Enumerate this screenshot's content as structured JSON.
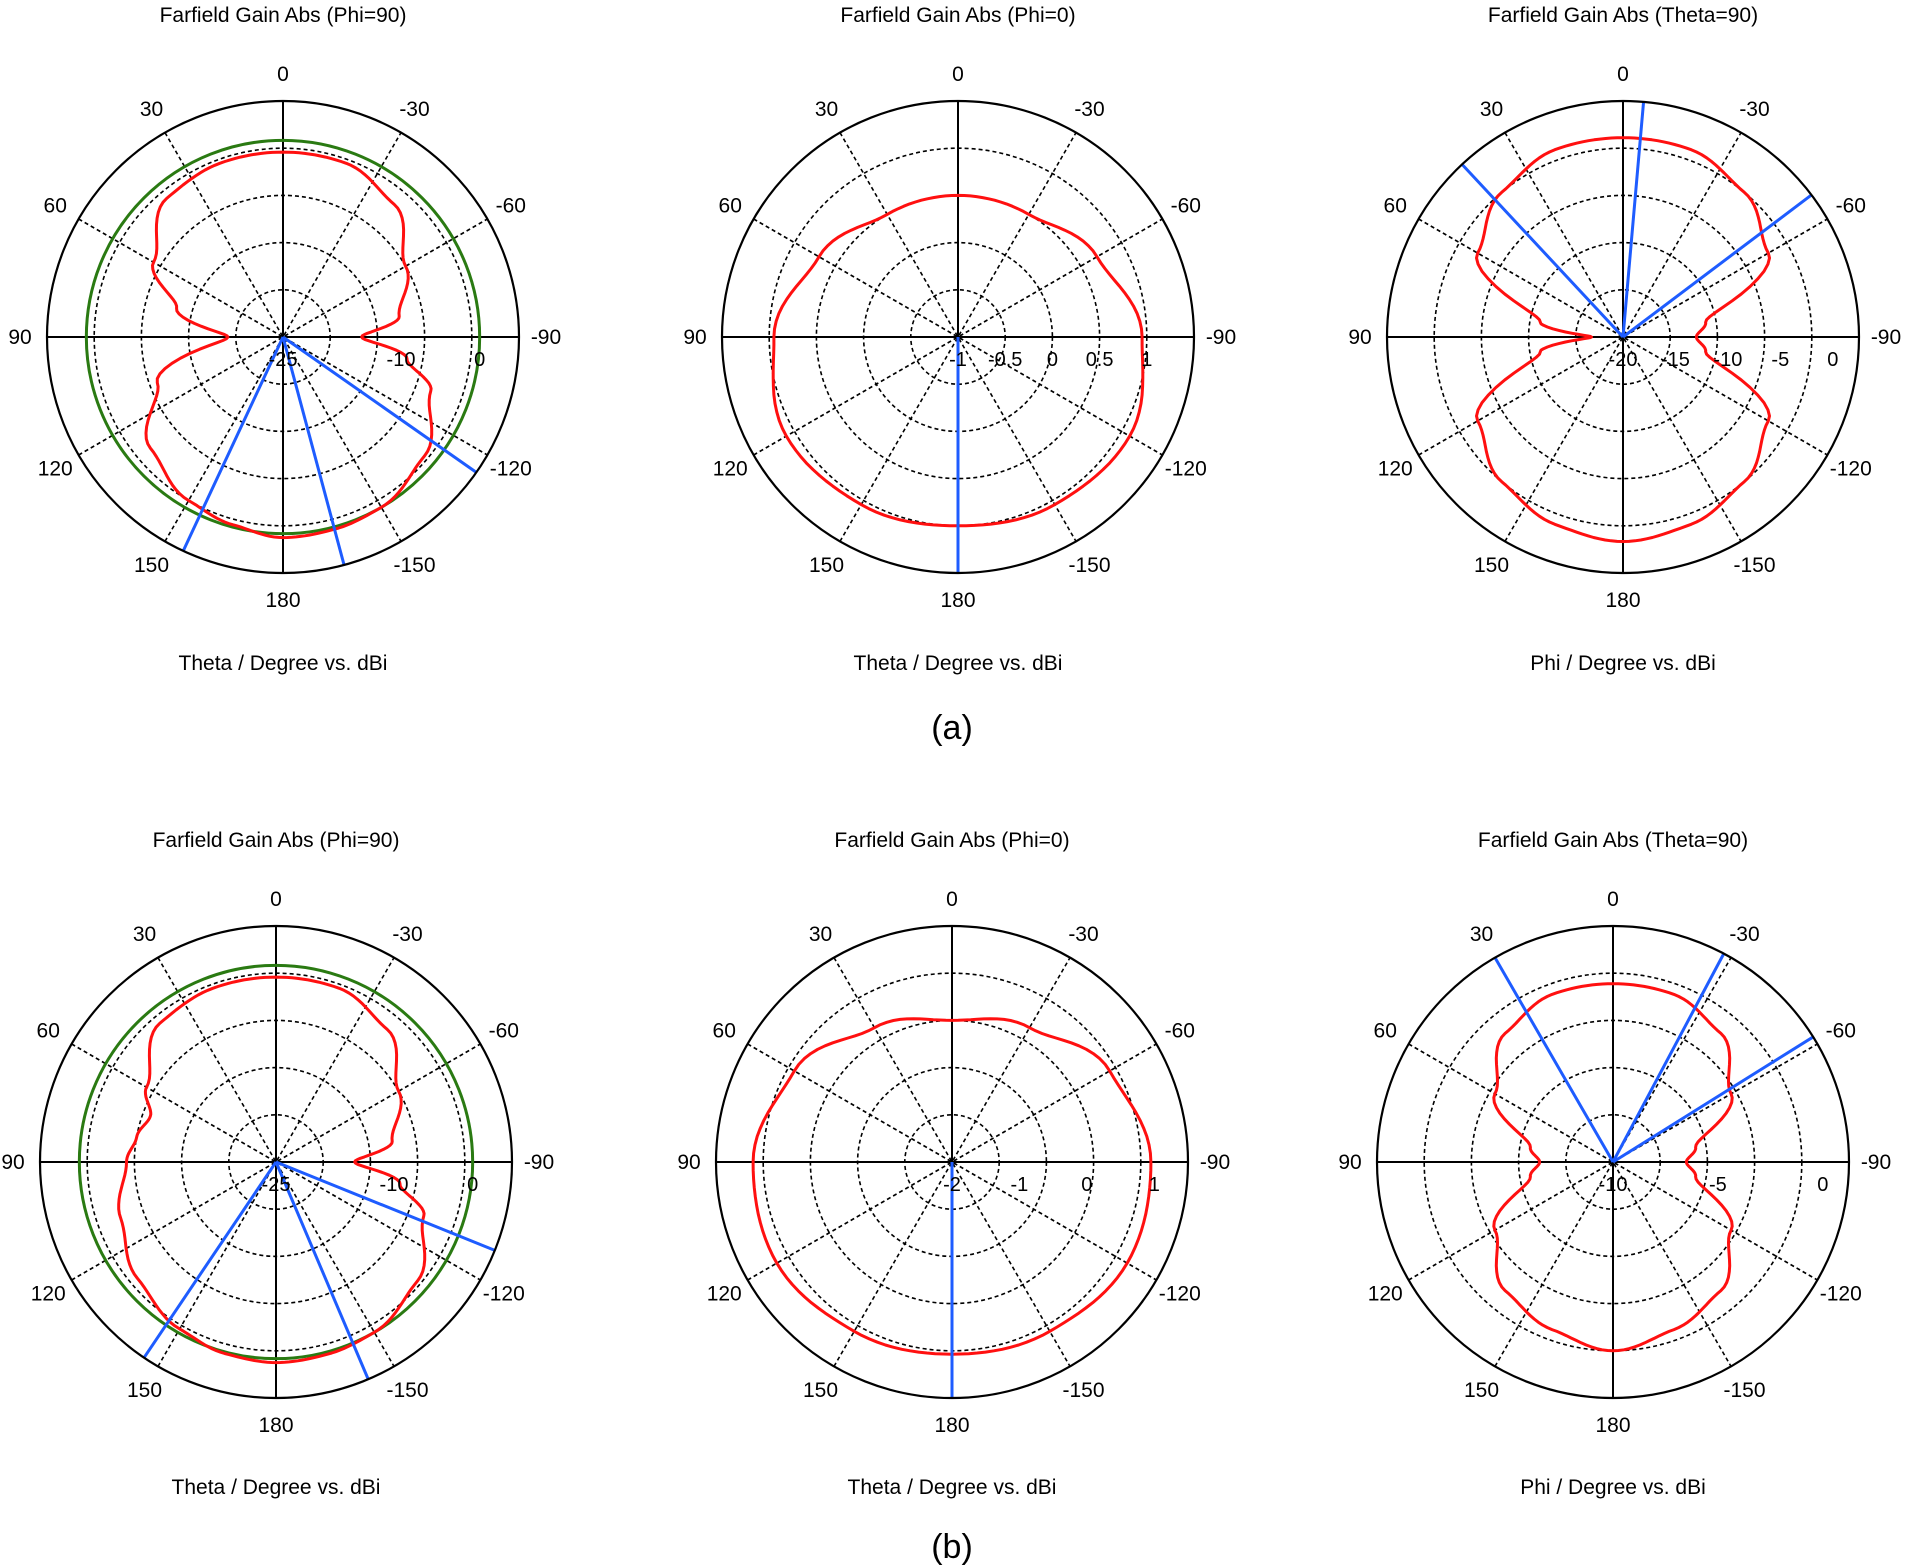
{
  "figure": {
    "captions": [
      "(a)",
      "(b)"
    ]
  },
  "chart_data": [
    {
      "type": "polar",
      "panel": "(a)",
      "title": "Farfield Gain Abs (Phi=90)",
      "xlabel": "Theta / Degree vs. dBi",
      "angle_ticks": [
        0,
        -30,
        -60,
        -90,
        -120,
        -150,
        180,
        150,
        120,
        90,
        60,
        30
      ],
      "angle_direction": "counter-clockwise from top",
      "radial_range": [
        -25,
        5
      ],
      "radial_tick_labels": [
        -25,
        -10,
        0
      ],
      "grid": "dashed",
      "colors": {
        "pattern": "#ff1010",
        "circle": "#2a7a12",
        "marker": "#1e5cff"
      },
      "series": [
        {
          "angles": [
            0,
            20,
            40,
            60,
            75,
            90,
            110,
            130,
            150,
            165,
            180,
            -165,
            -150,
            -130,
            -110,
            -100,
            -90,
            -80,
            -60,
            -40,
            -20
          ],
          "values": [
            -1.5,
            -1.5,
            -2,
            -6,
            -11,
            -18,
            -8,
            -3,
            -1,
            -0.3,
            0.5,
            0.3,
            0,
            -1.5,
            -5,
            -9,
            -15,
            -10,
            -7,
            -3,
            -1.5
          ]
        },
        {
          "name": "",
          "constant": 0
        },
        {
          "angles": [
            155,
            -165,
            -125
          ],
          "values": [
            5,
            5,
            5
          ]
        }
      ]
    },
    {
      "type": "polar",
      "panel": "(a)",
      "title": "Farfield Gain Abs (Phi=0)",
      "xlabel": "Theta / Degree vs. dBi",
      "angle_ticks": [
        0,
        -30,
        -60,
        -90,
        -120,
        -150,
        180,
        150,
        120,
        90,
        60,
        30
      ],
      "angle_direction": "counter-clockwise from top",
      "radial_range": [
        -1,
        1.5
      ],
      "radial_tick_labels": [
        -1,
        -0.5,
        0,
        0.5,
        1
      ],
      "grid": "dashed",
      "series": [
        {
          "angles": [
            0,
            30,
            60,
            90,
            120,
            150,
            180,
            -150,
            -120,
            -90,
            -60,
            -30
          ],
          "values": [
            0.5,
            0.5,
            0.7,
            0.95,
            1.1,
            1.05,
            1.0,
            1.05,
            1.1,
            0.95,
            0.7,
            0.5
          ]
        },
        {
          "angles": [
            180
          ],
          "values": [
            1.5
          ]
        }
      ]
    },
    {
      "type": "polar",
      "panel": "(a)",
      "title": "Farfield Gain Abs (Theta=90)",
      "xlabel": "Phi / Degree vs. dBi",
      "angle_ticks": [
        0,
        -30,
        -60,
        -90,
        -120,
        -150,
        180,
        150,
        120,
        90,
        60,
        30
      ],
      "angle_direction": "counter-clockwise from top",
      "radial_range": [
        -20,
        2.5
      ],
      "radial_tick_labels": [
        -20,
        -15,
        -10,
        -5,
        0
      ],
      "grid": "dashed",
      "series": [
        {
          "angles": [
            0,
            20,
            40,
            60,
            80,
            90,
            100,
            120,
            140,
            160,
            180,
            -160,
            -140,
            -120,
            -100,
            -90,
            -80,
            -60,
            -40,
            -20
          ],
          "values": [
            -1,
            -1,
            -2,
            -4,
            -12,
            -17,
            -12,
            -4,
            -2,
            -1,
            -0.5,
            -1,
            -2,
            -4,
            -12,
            -13,
            -12,
            -4,
            -2,
            -1
          ]
        },
        {
          "angles": [
            -5,
            43,
            -53
          ],
          "values": [
            2.5,
            2.5,
            2.5
          ]
        }
      ]
    },
    {
      "type": "polar",
      "panel": "(b)",
      "title": "Farfield Gain Abs (Phi=90)",
      "xlabel": "Theta / Degree vs. dBi",
      "angle_ticks": [
        0,
        -30,
        -60,
        -90,
        -120,
        -150,
        180,
        150,
        120,
        90,
        60,
        30
      ],
      "angle_direction": "counter-clockwise from top",
      "radial_range": [
        -25,
        5
      ],
      "radial_tick_labels": [
        -25,
        -10,
        0
      ],
      "grid": "dashed",
      "colors": {
        "pattern": "#ff1010",
        "circle": "#2a7a12",
        "marker": "#1e5cff"
      },
      "series": [
        {
          "angles": [
            0,
            20,
            40,
            60,
            70,
            80,
            90,
            110,
            130,
            150,
            165,
            180,
            -165,
            -150,
            -130,
            -110,
            -100,
            -90,
            -80,
            -60,
            -40,
            -20
          ],
          "values": [
            -1.5,
            -1.5,
            -2,
            -6,
            -8,
            -7,
            -6,
            -4,
            -2,
            -0.5,
            0.2,
            0.5,
            0.3,
            0,
            -1.5,
            -5,
            -9,
            -15,
            -10,
            -7,
            -3,
            -1.5
          ]
        },
        {
          "name": "",
          "constant": 0
        },
        {
          "angles": [
            146,
            -157,
            -112
          ],
          "values": [
            5,
            5,
            5
          ]
        }
      ]
    },
    {
      "type": "polar",
      "panel": "(b)",
      "title": "Farfield Gain Abs (Phi=0)",
      "xlabel": "Theta / Degree vs. dBi",
      "angle_ticks": [
        0,
        -30,
        -60,
        -90,
        -120,
        -150,
        180,
        150,
        120,
        90,
        60,
        30
      ],
      "angle_direction": "counter-clockwise from top",
      "radial_range": [
        -2,
        1.5
      ],
      "radial_tick_labels": [
        -2,
        -1,
        0,
        1
      ],
      "grid": "dashed",
      "series": [
        {
          "angles": [
            0,
            30,
            60,
            90,
            120,
            150,
            180,
            -150,
            -120,
            -90,
            -60,
            -30
          ],
          "values": [
            0.1,
            0.3,
            0.7,
            0.95,
            1.0,
            0.9,
            0.85,
            0.9,
            1.0,
            0.95,
            0.7,
            0.3
          ]
        },
        {
          "angles": [
            180
          ],
          "values": [
            1.5
          ]
        }
      ]
    },
    {
      "type": "polar",
      "panel": "(b)",
      "title": "Farfield Gain Abs (Theta=90)",
      "xlabel": "Phi / Degree vs. dBi",
      "angle_ticks": [
        0,
        -30,
        -60,
        -90,
        -120,
        -150,
        180,
        150,
        120,
        90,
        60,
        30
      ],
      "angle_direction": "counter-clockwise from top",
      "radial_range": [
        -10,
        1.25
      ],
      "radial_tick_labels": [
        -10,
        -5,
        0
      ],
      "grid": "dashed",
      "series": [
        {
          "angles": [
            0,
            20,
            40,
            60,
            80,
            90,
            100,
            120,
            140,
            160,
            180,
            -160,
            -140,
            -120,
            -100,
            -90,
            -80,
            -60,
            -40,
            -20
          ],
          "values": [
            -1.5,
            -1.5,
            -2,
            -3.5,
            -6,
            -6.5,
            -6,
            -3.5,
            -2,
            -1.5,
            -1,
            -1.5,
            -2,
            -3.5,
            -6,
            -6.5,
            -6,
            -3.5,
            -2,
            -1.5
          ]
        },
        {
          "angles": [
            30,
            -28,
            -58
          ],
          "values": [
            1.25,
            1.25,
            1.25
          ]
        }
      ]
    }
  ]
}
